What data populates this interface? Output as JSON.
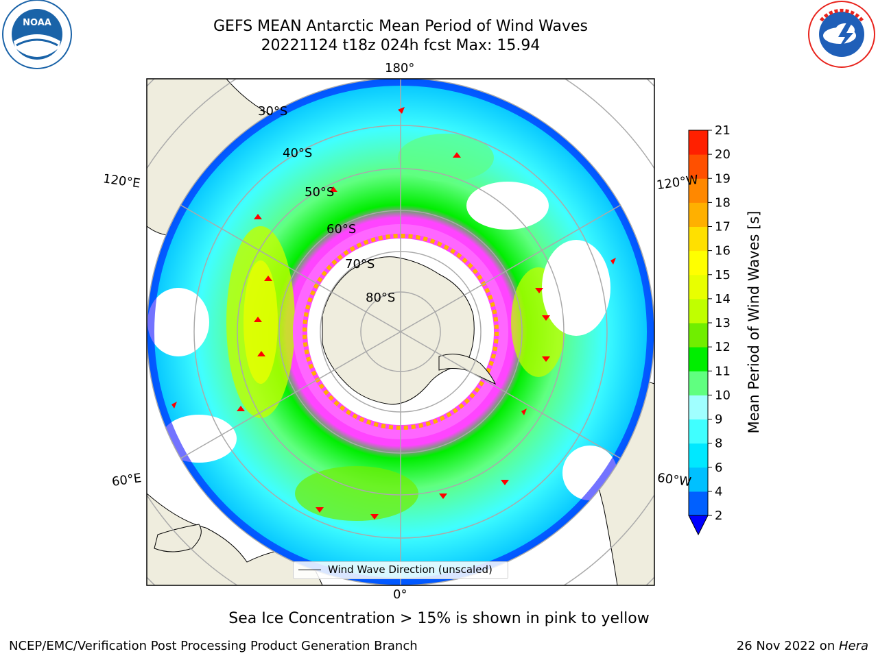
{
  "title_line1": "GEFS MEAN Antarctic Mean Period of Wind Waves",
  "title_line2": "20221124 t18z 024h fcst   Max: 15.94",
  "logos": {
    "noaa": {
      "icon": "noaa-logo",
      "ring_text": "NATIONAL OCEANIC AND ATMOSPHERIC ADMINISTRATION · U.S. DEPARTMENT OF COMMERCE",
      "center_text": "NOAA",
      "color": "#1a63a8"
    },
    "nws": {
      "icon": "nws-logo",
      "ring_text": "NATIONAL WEATHER SERVICE",
      "color": "#e8231c"
    }
  },
  "map": {
    "projection": "south-polar-stereographic",
    "land_color": "#efedde",
    "longitude_labels": {
      "top": "180°",
      "bottom": "0°",
      "upper_left": "120°E",
      "upper_right": "120°W",
      "lower_left": "60°E",
      "lower_right": "60°W"
    },
    "latitude_labels": [
      "30°S",
      "40°S",
      "50°S",
      "60°S",
      "70°S",
      "80°S"
    ],
    "legend": {
      "label": "Wind Wave Direction (unscaled)"
    }
  },
  "colorbar": {
    "title": "Mean Period of Wind Waves [s]",
    "ticks": [
      "2",
      "4",
      "6",
      "8",
      "9",
      "10",
      "11",
      "12",
      "13",
      "14",
      "15",
      "16",
      "17",
      "18",
      "19",
      "20",
      "21"
    ],
    "colors": [
      "#0060ff",
      "#00c0ff",
      "#00e8ff",
      "#40ffff",
      "#a0ffff",
      "#60ff80",
      "#00ee00",
      "#70ee00",
      "#c0ff00",
      "#e8ff00",
      "#ffff00",
      "#ffe000",
      "#ffb000",
      "#ff8800",
      "#ff5000",
      "#ff2000"
    ],
    "extend_color": "#0000ff"
  },
  "subtitle": "Sea Ice Concentration > 15% is shown in pink to yellow",
  "footer": {
    "left": "NCEP/EMC/Verification Post Processing Product Generation Branch",
    "right_prefix": "26 Nov 2022 on ",
    "right_machine": "Hera"
  }
}
